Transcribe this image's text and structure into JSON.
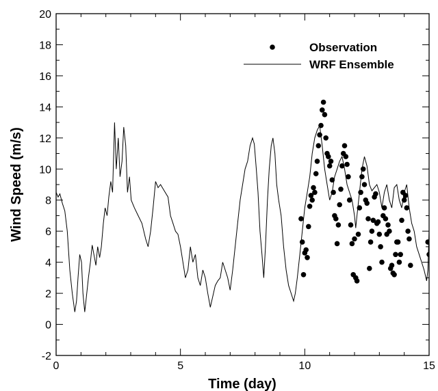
{
  "chart_data": {
    "type": "line",
    "xlabel": "Time (day)",
    "ylabel": "Wind Speed (m/s)",
    "xlim": [
      0,
      15
    ],
    "ylim": [
      -2,
      20
    ],
    "x_ticks": [
      0,
      5,
      10,
      15
    ],
    "y_ticks": [
      -2,
      0,
      2,
      4,
      6,
      8,
      10,
      12,
      14,
      16,
      18,
      20
    ],
    "grid": false,
    "legend": "top-right",
    "series": [
      {
        "name": "WRF Ensemble",
        "kind": "line",
        "color": "#000000",
        "points": [
          [
            0.0,
            8.5
          ],
          [
            0.08,
            8.2
          ],
          [
            0.15,
            8.4
          ],
          [
            0.25,
            7.8
          ],
          [
            0.35,
            7.3
          ],
          [
            0.45,
            6.0
          ],
          [
            0.55,
            3.5
          ],
          [
            0.65,
            2.0
          ],
          [
            0.75,
            0.8
          ],
          [
            0.82,
            1.5
          ],
          [
            0.88,
            3.0
          ],
          [
            0.95,
            4.5
          ],
          [
            1.02,
            4.0
          ],
          [
            1.08,
            2.0
          ],
          [
            1.15,
            0.8
          ],
          [
            1.22,
            1.8
          ],
          [
            1.3,
            3.0
          ],
          [
            1.38,
            4.0
          ],
          [
            1.45,
            5.1
          ],
          [
            1.52,
            4.5
          ],
          [
            1.6,
            3.8
          ],
          [
            1.67,
            5.0
          ],
          [
            1.75,
            4.3
          ],
          [
            1.82,
            5.0
          ],
          [
            1.9,
            6.5
          ],
          [
            1.97,
            7.5
          ],
          [
            2.05,
            7.0
          ],
          [
            2.12,
            8.2
          ],
          [
            2.2,
            9.2
          ],
          [
            2.27,
            8.5
          ],
          [
            2.35,
            13.0
          ],
          [
            2.42,
            10.0
          ],
          [
            2.5,
            12.0
          ],
          [
            2.57,
            9.5
          ],
          [
            2.65,
            10.5
          ],
          [
            2.72,
            12.7
          ],
          [
            2.8,
            11.5
          ],
          [
            2.87,
            8.5
          ],
          [
            2.95,
            9.5
          ],
          [
            3.02,
            8.0
          ],
          [
            3.15,
            7.5
          ],
          [
            3.3,
            7.0
          ],
          [
            3.45,
            6.5
          ],
          [
            3.6,
            5.5
          ],
          [
            3.7,
            5.0
          ],
          [
            3.8,
            6.0
          ],
          [
            3.9,
            7.5
          ],
          [
            4.0,
            9.2
          ],
          [
            4.1,
            8.8
          ],
          [
            4.2,
            9.0
          ],
          [
            4.35,
            8.6
          ],
          [
            4.5,
            8.2
          ],
          [
            4.6,
            7.0
          ],
          [
            4.7,
            6.5
          ],
          [
            4.8,
            6.0
          ],
          [
            4.9,
            5.8
          ],
          [
            5.0,
            5.0
          ],
          [
            5.1,
            4.0
          ],
          [
            5.2,
            3.0
          ],
          [
            5.3,
            3.5
          ],
          [
            5.4,
            5.0
          ],
          [
            5.5,
            4.0
          ],
          [
            5.6,
            4.5
          ],
          [
            5.7,
            3.0
          ],
          [
            5.8,
            2.5
          ],
          [
            5.9,
            3.5
          ],
          [
            6.0,
            3.0
          ],
          [
            6.1,
            2.0
          ],
          [
            6.2,
            1.1
          ],
          [
            6.3,
            1.8
          ],
          [
            6.4,
            2.5
          ],
          [
            6.5,
            2.8
          ],
          [
            6.6,
            3.0
          ],
          [
            6.7,
            4.0
          ],
          [
            6.8,
            3.5
          ],
          [
            6.9,
            3.0
          ],
          [
            7.0,
            2.2
          ],
          [
            7.1,
            3.5
          ],
          [
            7.2,
            5.0
          ],
          [
            7.3,
            6.5
          ],
          [
            7.4,
            8.0
          ],
          [
            7.5,
            9.0
          ],
          [
            7.6,
            10.0
          ],
          [
            7.7,
            10.5
          ],
          [
            7.8,
            11.5
          ],
          [
            7.9,
            12.0
          ],
          [
            7.97,
            11.6
          ],
          [
            8.05,
            10.0
          ],
          [
            8.12,
            8.5
          ],
          [
            8.2,
            6.0
          ],
          [
            8.28,
            4.5
          ],
          [
            8.35,
            3.0
          ],
          [
            8.42,
            5.0
          ],
          [
            8.5,
            8.0
          ],
          [
            8.57,
            10.0
          ],
          [
            8.65,
            11.5
          ],
          [
            8.72,
            12.0
          ],
          [
            8.8,
            11.0
          ],
          [
            8.87,
            9.0
          ],
          [
            8.95,
            8.0
          ],
          [
            9.05,
            7.0
          ],
          [
            9.15,
            5.0
          ],
          [
            9.25,
            3.5
          ],
          [
            9.35,
            2.5
          ],
          [
            9.45,
            2.0
          ],
          [
            9.55,
            1.5
          ],
          [
            9.62,
            2.0
          ],
          [
            9.7,
            3.0
          ],
          [
            9.8,
            4.5
          ],
          [
            9.9,
            6.0
          ],
          [
            10.0,
            7.5
          ],
          [
            10.1,
            8.5
          ],
          [
            10.2,
            9.5
          ],
          [
            10.3,
            11.0
          ],
          [
            10.4,
            12.0
          ],
          [
            10.5,
            12.5
          ],
          [
            10.6,
            12.8
          ],
          [
            10.7,
            11.5
          ],
          [
            10.8,
            10.0
          ],
          [
            10.9,
            9.0
          ],
          [
            11.0,
            8.0
          ],
          [
            11.1,
            8.5
          ],
          [
            11.2,
            9.5
          ],
          [
            11.3,
            10.0
          ],
          [
            11.4,
            10.5
          ],
          [
            11.5,
            10.8
          ],
          [
            11.6,
            10.0
          ],
          [
            11.7,
            9.0
          ],
          [
            11.8,
            8.5
          ],
          [
            11.9,
            8.0
          ],
          [
            12.0,
            7.0
          ],
          [
            12.05,
            6.2
          ],
          [
            12.1,
            7.0
          ],
          [
            12.2,
            8.5
          ],
          [
            12.3,
            10.0
          ],
          [
            12.4,
            10.8
          ],
          [
            12.5,
            10.2
          ],
          [
            12.6,
            9.0
          ],
          [
            12.7,
            8.6
          ],
          [
            12.8,
            8.8
          ],
          [
            12.9,
            9.0
          ],
          [
            13.0,
            8.5
          ],
          [
            13.1,
            7.5
          ],
          [
            13.2,
            8.5
          ],
          [
            13.3,
            9.0
          ],
          [
            13.4,
            8.0
          ],
          [
            13.5,
            7.5
          ],
          [
            13.6,
            8.8
          ],
          [
            13.7,
            9.0
          ],
          [
            13.8,
            8.0
          ],
          [
            13.9,
            7.5
          ],
          [
            14.0,
            8.5
          ],
          [
            14.1,
            9.0
          ],
          [
            14.2,
            7.5
          ],
          [
            14.3,
            6.5
          ],
          [
            14.4,
            6.0
          ],
          [
            14.5,
            5.0
          ],
          [
            14.6,
            4.5
          ],
          [
            14.7,
            4.0
          ],
          [
            14.8,
            3.5
          ],
          [
            14.9,
            2.8
          ],
          [
            14.95,
            3.5
          ],
          [
            15.0,
            6.0
          ]
        ]
      },
      {
        "name": "Observation",
        "kind": "scatter",
        "color": "#000000",
        "points": [
          [
            9.85,
            6.8
          ],
          [
            9.9,
            5.3
          ],
          [
            9.95,
            3.2
          ],
          [
            10.0,
            4.6
          ],
          [
            10.05,
            4.8
          ],
          [
            10.1,
            4.3
          ],
          [
            10.15,
            6.3
          ],
          [
            10.2,
            7.6
          ],
          [
            10.25,
            8.3
          ],
          [
            10.3,
            8.0
          ],
          [
            10.35,
            8.8
          ],
          [
            10.4,
            8.5
          ],
          [
            10.45,
            9.7
          ],
          [
            10.5,
            10.5
          ],
          [
            10.55,
            11.5
          ],
          [
            10.6,
            12.2
          ],
          [
            10.65,
            12.8
          ],
          [
            10.7,
            13.8
          ],
          [
            10.75,
            14.3
          ],
          [
            10.8,
            13.5
          ],
          [
            10.85,
            12.0
          ],
          [
            10.9,
            11.0
          ],
          [
            10.95,
            10.8
          ],
          [
            11.0,
            10.2
          ],
          [
            11.05,
            10.5
          ],
          [
            11.1,
            9.3
          ],
          [
            11.15,
            8.5
          ],
          [
            11.2,
            7.0
          ],
          [
            11.25,
            6.8
          ],
          [
            11.3,
            5.2
          ],
          [
            11.35,
            6.4
          ],
          [
            11.4,
            7.7
          ],
          [
            11.45,
            8.7
          ],
          [
            11.5,
            10.2
          ],
          [
            11.55,
            11.0
          ],
          [
            11.6,
            11.5
          ],
          [
            11.65,
            10.8
          ],
          [
            11.7,
            10.3
          ],
          [
            11.75,
            9.5
          ],
          [
            11.8,
            8.0
          ],
          [
            11.85,
            6.4
          ],
          [
            11.9,
            5.2
          ],
          [
            11.95,
            3.2
          ],
          [
            12.0,
            5.5
          ],
          [
            12.05,
            3.0
          ],
          [
            12.1,
            2.8
          ],
          [
            12.15,
            5.8
          ],
          [
            12.2,
            7.5
          ],
          [
            12.25,
            8.5
          ],
          [
            12.3,
            9.5
          ],
          [
            12.35,
            10.0
          ],
          [
            12.4,
            9.0
          ],
          [
            12.45,
            8.0
          ],
          [
            12.5,
            7.8
          ],
          [
            12.55,
            6.8
          ],
          [
            12.6,
            3.6
          ],
          [
            12.65,
            5.3
          ],
          [
            12.7,
            6.0
          ],
          [
            12.75,
            6.7
          ],
          [
            12.8,
            8.2
          ],
          [
            12.85,
            8.4
          ],
          [
            12.9,
            6.5
          ],
          [
            12.95,
            6.6
          ],
          [
            13.0,
            5.8
          ],
          [
            13.05,
            5.0
          ],
          [
            13.1,
            4.0
          ],
          [
            13.15,
            7.0
          ],
          [
            13.2,
            7.5
          ],
          [
            13.25,
            6.8
          ],
          [
            13.3,
            5.8
          ],
          [
            13.35,
            6.4
          ],
          [
            13.4,
            6.0
          ],
          [
            13.45,
            3.6
          ],
          [
            13.5,
            3.8
          ],
          [
            13.55,
            3.3
          ],
          [
            13.6,
            3.2
          ],
          [
            13.65,
            4.5
          ],
          [
            13.7,
            5.3
          ],
          [
            13.75,
            5.3
          ],
          [
            13.8,
            4.0
          ],
          [
            13.85,
            4.5
          ],
          [
            13.9,
            6.7
          ],
          [
            13.95,
            8.5
          ],
          [
            14.0,
            8.0
          ],
          [
            14.05,
            8.3
          ],
          [
            14.1,
            7.5
          ],
          [
            14.15,
            6.0
          ],
          [
            14.2,
            5.5
          ],
          [
            14.25,
            3.8
          ],
          [
            14.95,
            5.3
          ],
          [
            15.0,
            4.5
          ]
        ]
      }
    ]
  }
}
